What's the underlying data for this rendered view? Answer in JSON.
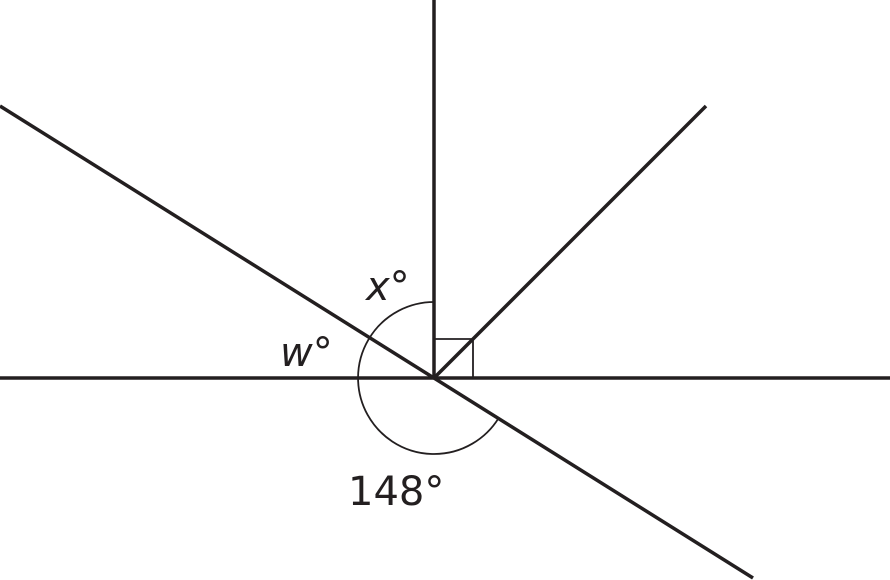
{
  "diagram": {
    "labels": {
      "x_angle": "x°",
      "w_angle": "w°",
      "given_angle": "148°"
    },
    "given_angle_degrees": 148,
    "right_angle_marker": true,
    "line_color": "#231f20"
  }
}
